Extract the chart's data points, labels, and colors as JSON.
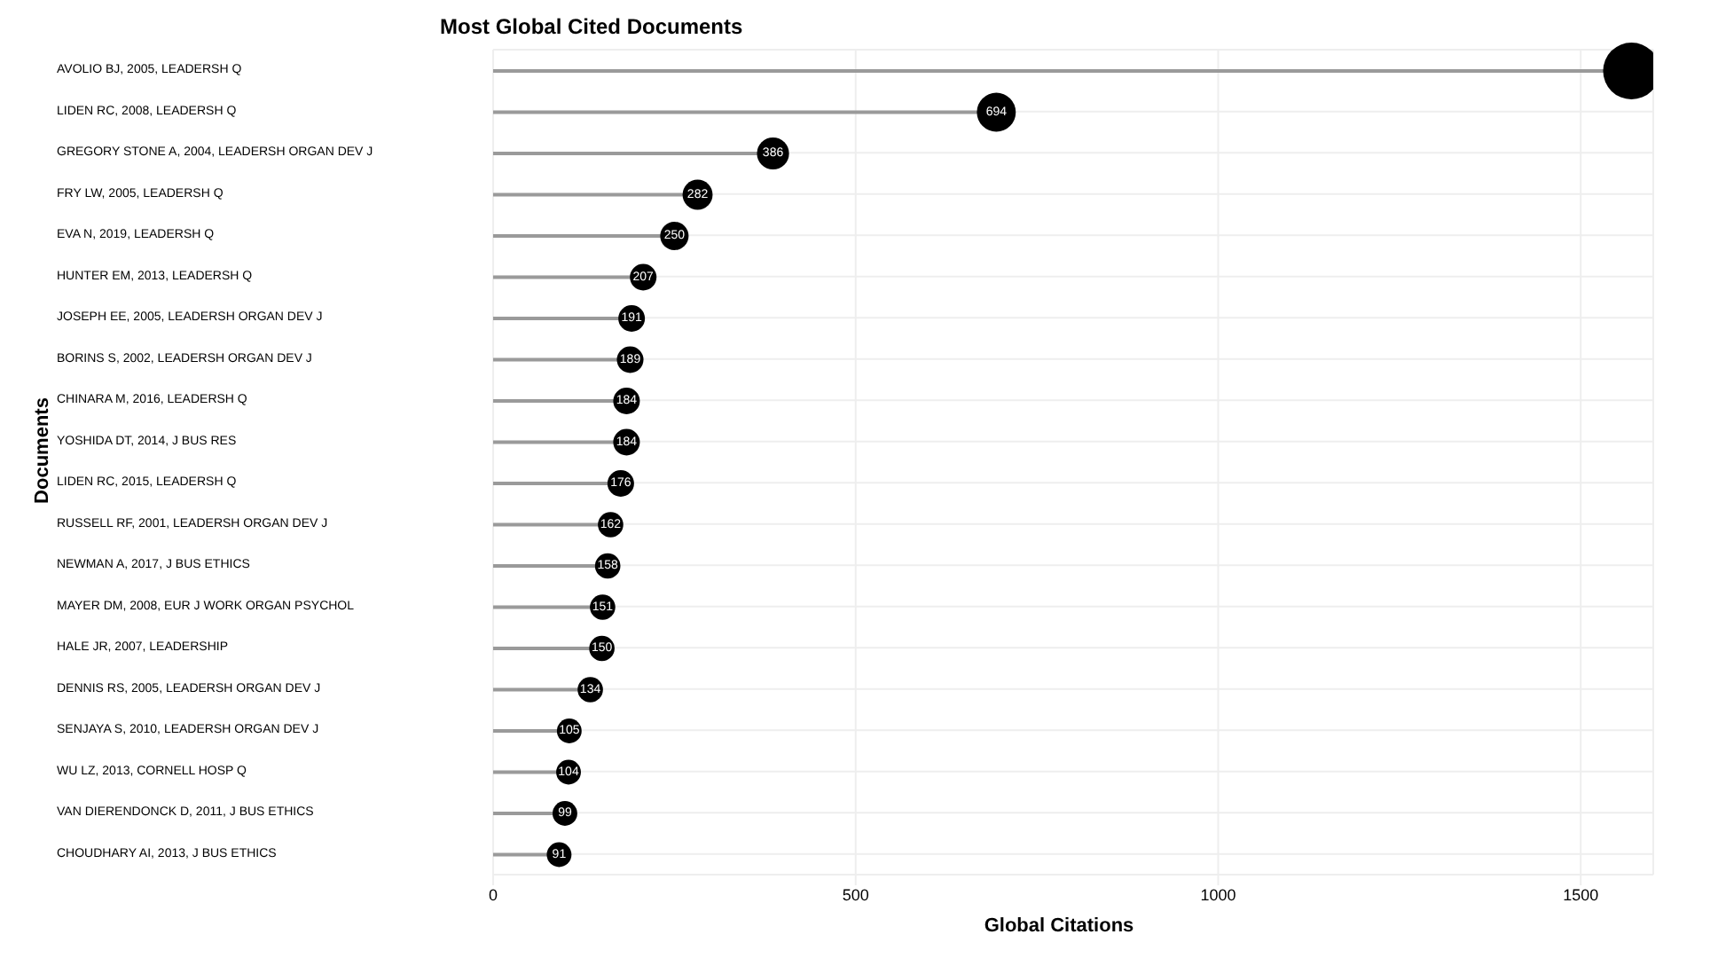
{
  "chart_data": {
    "type": "lollipop",
    "orientation": "horizontal",
    "title": "Most Global Cited Documents",
    "xlabel": "Global Citations",
    "ylabel": "Documents",
    "categories": [
      "AVOLIO BJ, 2005, LEADERSH Q",
      "LIDEN RC, 2008, LEADERSH Q",
      "GREGORY STONE A, 2004, LEADERSH ORGAN DEV J",
      "FRY LW, 2005, LEADERSH Q",
      "EVA N, 2019, LEADERSH Q",
      "HUNTER EM, 2013, LEADERSH Q",
      "JOSEPH EE, 2005, LEADERSH ORGAN DEV J",
      "BORINS S, 2002, LEADERSH ORGAN DEV J",
      "CHINARA M, 2016, LEADERSH Q",
      "YOSHIDA DT, 2014, J BUS RES",
      "LIDEN RC, 2015, LEADERSH Q",
      "RUSSELL RF, 2001, LEADERSH ORGAN DEV J",
      "NEWMAN A, 2017, J BUS ETHICS",
      "MAYER DM, 2008, EUR J WORK ORGAN PSYCHOL",
      "HALE JR, 2007, LEADERSHIP",
      "DENNIS RS, 2005, LEADERSH ORGAN DEV J",
      "SENJAYA S, 2010, LEADERSH ORGAN DEV J",
      "WU LZ, 2013, CORNELL HOSP Q",
      "VAN DIERENDONCK D, 2011, J BUS ETHICS",
      "CHOUDHARY AI, 2013, J BUS ETHICS"
    ],
    "values": [
      1570,
      694,
      386,
      282,
      250,
      207,
      191,
      189,
      184,
      184,
      176,
      162,
      158,
      151,
      150,
      134,
      105,
      104,
      99,
      91
    ],
    "value_labels": [
      null,
      "694",
      "386",
      "282",
      "250",
      "207",
      "191",
      "189",
      "184",
      "184",
      "176",
      "162",
      "158",
      "151",
      "150",
      "134",
      "105",
      "104",
      "99",
      "91"
    ],
    "sizes": [
      1,
      0.47,
      0.32,
      0.28,
      0.25,
      0.22,
      0.22,
      0.22,
      0.22,
      0.22,
      0.22,
      0.2,
      0.2,
      0.2,
      0.2,
      0.2,
      0.19,
      0.19,
      0.19,
      0.19
    ],
    "color": "#000000",
    "xlim": [
      0,
      1600
    ],
    "xticks": [
      0,
      500,
      1000,
      1500
    ],
    "grid": true
  }
}
